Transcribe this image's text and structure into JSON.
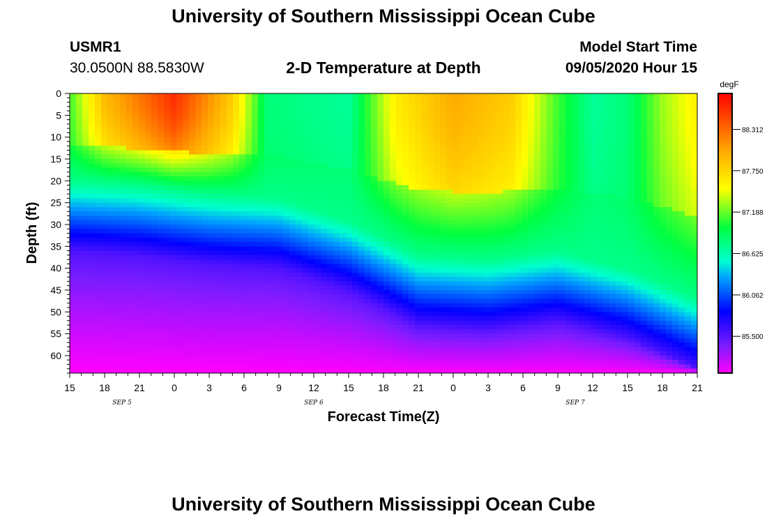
{
  "header": {
    "title": "University of Southern Mississippi Ocean Cube",
    "station": "USMR1",
    "coords": "30.0500N 88.5830W",
    "subtitle": "2-D Temperature at Depth",
    "model_start_label": "Model Start Time",
    "model_start_value": "09/05/2020 Hour 15"
  },
  "footer": {
    "title": "University of Southern Mississippi Ocean Cube"
  },
  "chart_data": {
    "type": "heatmap",
    "title": "2-D Temperature at Depth",
    "xlabel": "Forecast Time(Z)",
    "ylabel": "Depth (ft)",
    "x_tick_labels": [
      "15",
      "18",
      "21",
      "0",
      "3",
      "6",
      "9",
      "12",
      "15",
      "18",
      "21",
      "0",
      "3",
      "6",
      "9",
      "12",
      "15",
      "18",
      "21"
    ],
    "x_range_hours": [
      0,
      54
    ],
    "date_labels": [
      {
        "text": "SEP 5",
        "hour": 4.5
      },
      {
        "text": "SEP 6",
        "hour": 21
      },
      {
        "text": "SEP 7",
        "hour": 43.5
      }
    ],
    "y_ticks": [
      0,
      5,
      10,
      15,
      20,
      25,
      30,
      35,
      40,
      45,
      50,
      55,
      60
    ],
    "y_range": [
      0,
      64
    ],
    "colorbar": {
      "unit": "degF",
      "ticks": [
        "88.312",
        "87.750",
        "87.188",
        "86.625",
        "86.062",
        "85.500"
      ],
      "tick_values": [
        88.312,
        87.75,
        87.188,
        86.625,
        86.062,
        85.5
      ],
      "range": [
        85.0,
        88.8
      ]
    },
    "field": {
      "mixed_layer_bottom_ft": [
        [
          0,
          26
        ],
        [
          6,
          27
        ],
        [
          12,
          29
        ],
        [
          18,
          30
        ],
        [
          24,
          35
        ],
        [
          30,
          43
        ],
        [
          36,
          44
        ],
        [
          42,
          42
        ],
        [
          48,
          46
        ],
        [
          54,
          53
        ]
      ],
      "surface_temp_degF": [
        [
          0,
          87.1
        ],
        [
          3,
          87.9
        ],
        [
          9,
          88.6
        ],
        [
          14,
          87.8
        ],
        [
          17,
          86.8
        ],
        [
          24,
          86.7
        ],
        [
          28,
          87.6
        ],
        [
          33,
          88.0
        ],
        [
          38,
          87.8
        ],
        [
          42,
          87.1
        ],
        [
          45,
          86.7
        ],
        [
          48,
          86.8
        ],
        [
          51,
          87.3
        ],
        [
          54,
          87.6
        ]
      ],
      "deep_temp_degF": 85.0
    }
  }
}
